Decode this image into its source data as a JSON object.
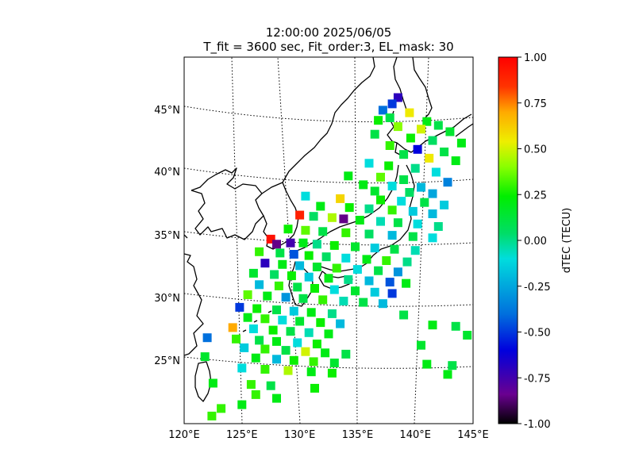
{
  "chart_data": {
    "type": "heatmap",
    "title_line1": "12:00:00 2025/06/05",
    "title_line2": "T_fit = 3600 sec, Fit_order:3, EL_mask: 30",
    "lon_ticks": [
      "120°E",
      "125°E",
      "130°E",
      "135°E",
      "140°E",
      "145°E"
    ],
    "lat_ticks": [
      "25°N",
      "30°N",
      "35°N",
      "40°N",
      "45°N"
    ],
    "lon_range": [
      120,
      145
    ],
    "lat_range": [
      20,
      49
    ],
    "colorbar": {
      "label": "dTEC (TECU)",
      "range": [
        -1.0,
        1.0
      ],
      "tick_labels": [
        "1.00",
        "0.75",
        "0.50",
        "0.25",
        "0.00",
        "-0.25",
        "-0.50",
        "-0.75",
        "-1.00"
      ],
      "tick_values": [
        1.0,
        0.75,
        0.5,
        0.25,
        0.0,
        -0.25,
        -0.5,
        -0.75,
        -1.0
      ],
      "colormap": "nipy_spectral-like"
    },
    "grid": true,
    "points": [
      {
        "lon": 138.5,
        "lat": 45.8,
        "v": -0.7
      },
      {
        "lon": 138.0,
        "lat": 45.3,
        "v": -0.5
      },
      {
        "lon": 137.2,
        "lat": 44.8,
        "v": -0.4
      },
      {
        "lon": 139.5,
        "lat": 44.6,
        "v": 0.55
      },
      {
        "lon": 137.8,
        "lat": 44.2,
        "v": 0.1
      },
      {
        "lon": 136.8,
        "lat": 44.0,
        "v": 0.25
      },
      {
        "lon": 141.0,
        "lat": 43.9,
        "v": 0.2
      },
      {
        "lon": 142.0,
        "lat": 43.6,
        "v": 0.1
      },
      {
        "lon": 138.5,
        "lat": 43.5,
        "v": 0.4
      },
      {
        "lon": 140.5,
        "lat": 43.3,
        "v": 0.5
      },
      {
        "lon": 143.0,
        "lat": 43.1,
        "v": 0.15
      },
      {
        "lon": 136.5,
        "lat": 42.9,
        "v": 0.1
      },
      {
        "lon": 139.6,
        "lat": 42.6,
        "v": 0.25
      },
      {
        "lon": 141.5,
        "lat": 42.4,
        "v": 0.05
      },
      {
        "lon": 144.0,
        "lat": 42.2,
        "v": 0.2
      },
      {
        "lon": 137.8,
        "lat": 42.0,
        "v": 0.3
      },
      {
        "lon": 140.2,
        "lat": 41.7,
        "v": -0.6
      },
      {
        "lon": 142.5,
        "lat": 41.5,
        "v": 0.1
      },
      {
        "lon": 139.0,
        "lat": 41.3,
        "v": 0.1
      },
      {
        "lon": 141.2,
        "lat": 41.0,
        "v": 0.55
      },
      {
        "lon": 143.5,
        "lat": 40.8,
        "v": 0.2
      },
      {
        "lon": 136.0,
        "lat": 40.6,
        "v": -0.1
      },
      {
        "lon": 137.7,
        "lat": 40.4,
        "v": 0.25
      },
      {
        "lon": 140.0,
        "lat": 40.2,
        "v": 0.0
      },
      {
        "lon": 141.8,
        "lat": 39.9,
        "v": -0.1
      },
      {
        "lon": 134.2,
        "lat": 39.6,
        "v": 0.2
      },
      {
        "lon": 137.0,
        "lat": 39.5,
        "v": 0.35
      },
      {
        "lon": 139.0,
        "lat": 39.3,
        "v": 0.1
      },
      {
        "lon": 142.8,
        "lat": 39.1,
        "v": -0.35
      },
      {
        "lon": 135.5,
        "lat": 38.9,
        "v": 0.2
      },
      {
        "lon": 138.0,
        "lat": 38.8,
        "v": -0.1
      },
      {
        "lon": 140.5,
        "lat": 38.7,
        "v": -0.2
      },
      {
        "lon": 136.5,
        "lat": 38.4,
        "v": 0.15
      },
      {
        "lon": 139.5,
        "lat": 38.3,
        "v": 0.05
      },
      {
        "lon": 141.5,
        "lat": 38.2,
        "v": -0.25
      },
      {
        "lon": 130.5,
        "lat": 38.0,
        "v": -0.1
      },
      {
        "lon": 133.5,
        "lat": 37.8,
        "v": 0.6
      },
      {
        "lon": 137.0,
        "lat": 37.7,
        "v": 0.25
      },
      {
        "lon": 138.8,
        "lat": 37.6,
        "v": -0.1
      },
      {
        "lon": 140.8,
        "lat": 37.5,
        "v": 0.1
      },
      {
        "lon": 142.5,
        "lat": 37.3,
        "v": -0.15
      },
      {
        "lon": 131.8,
        "lat": 37.2,
        "v": 0.2
      },
      {
        "lon": 134.3,
        "lat": 37.1,
        "v": 0.25
      },
      {
        "lon": 136.0,
        "lat": 37.0,
        "v": 0.0
      },
      {
        "lon": 138.0,
        "lat": 36.9,
        "v": 0.3
      },
      {
        "lon": 139.8,
        "lat": 36.8,
        "v": -0.15
      },
      {
        "lon": 141.5,
        "lat": 36.6,
        "v": -0.2
      },
      {
        "lon": 130.0,
        "lat": 36.5,
        "v": 0.9
      },
      {
        "lon": 131.2,
        "lat": 36.4,
        "v": 0.05
      },
      {
        "lon": 132.8,
        "lat": 36.3,
        "v": 0.45
      },
      {
        "lon": 133.8,
        "lat": 36.2,
        "v": -0.85
      },
      {
        "lon": 135.2,
        "lat": 36.1,
        "v": 0.2
      },
      {
        "lon": 137.0,
        "lat": 36.0,
        "v": -0.05
      },
      {
        "lon": 138.5,
        "lat": 35.9,
        "v": 0.1
      },
      {
        "lon": 140.2,
        "lat": 35.8,
        "v": -0.1
      },
      {
        "lon": 142.0,
        "lat": 35.6,
        "v": 0.0
      },
      {
        "lon": 129.0,
        "lat": 35.4,
        "v": 0.25
      },
      {
        "lon": 130.5,
        "lat": 35.3,
        "v": 0.35
      },
      {
        "lon": 132.0,
        "lat": 35.2,
        "v": 0.1
      },
      {
        "lon": 134.0,
        "lat": 35.1,
        "v": 0.3
      },
      {
        "lon": 136.0,
        "lat": 35.0,
        "v": 0.05
      },
      {
        "lon": 138.0,
        "lat": 34.9,
        "v": -0.2
      },
      {
        "lon": 139.8,
        "lat": 34.8,
        "v": 0.1
      },
      {
        "lon": 141.5,
        "lat": 34.7,
        "v": -0.1
      },
      {
        "lon": 127.5,
        "lat": 34.6,
        "v": 0.95
      },
      {
        "lon": 128.0,
        "lat": 34.2,
        "v": -0.85
      },
      {
        "lon": 129.2,
        "lat": 34.3,
        "v": -0.75
      },
      {
        "lon": 130.3,
        "lat": 34.3,
        "v": 0.2
      },
      {
        "lon": 131.5,
        "lat": 34.2,
        "v": 0.0
      },
      {
        "lon": 133.0,
        "lat": 34.1,
        "v": 0.25
      },
      {
        "lon": 134.8,
        "lat": 34.0,
        "v": 0.15
      },
      {
        "lon": 136.5,
        "lat": 33.9,
        "v": -0.15
      },
      {
        "lon": 138.2,
        "lat": 33.8,
        "v": 0.1
      },
      {
        "lon": 140.0,
        "lat": 33.7,
        "v": -0.05
      },
      {
        "lon": 126.5,
        "lat": 33.6,
        "v": 0.3
      },
      {
        "lon": 128.3,
        "lat": 33.5,
        "v": 0.1
      },
      {
        "lon": 129.5,
        "lat": 33.4,
        "v": -0.45
      },
      {
        "lon": 130.8,
        "lat": 33.3,
        "v": 0.25
      },
      {
        "lon": 132.3,
        "lat": 33.2,
        "v": 0.05
      },
      {
        "lon": 134.0,
        "lat": 33.1,
        "v": -0.1
      },
      {
        "lon": 135.8,
        "lat": 33.0,
        "v": 0.2
      },
      {
        "lon": 137.5,
        "lat": 32.9,
        "v": 0.3
      },
      {
        "lon": 139.3,
        "lat": 32.8,
        "v": 0.0
      },
      {
        "lon": 127.0,
        "lat": 32.7,
        "v": -0.7
      },
      {
        "lon": 128.5,
        "lat": 32.6,
        "v": 0.2
      },
      {
        "lon": 130.0,
        "lat": 32.5,
        "v": -0.2
      },
      {
        "lon": 131.5,
        "lat": 32.4,
        "v": 0.15
      },
      {
        "lon": 133.2,
        "lat": 32.3,
        "v": 0.3
      },
      {
        "lon": 135.0,
        "lat": 32.2,
        "v": -0.1
      },
      {
        "lon": 136.8,
        "lat": 32.1,
        "v": 0.1
      },
      {
        "lon": 138.5,
        "lat": 32.0,
        "v": -0.3
      },
      {
        "lon": 126.0,
        "lat": 31.9,
        "v": 0.15
      },
      {
        "lon": 127.8,
        "lat": 31.8,
        "v": 0.05
      },
      {
        "lon": 129.3,
        "lat": 31.7,
        "v": 0.25
      },
      {
        "lon": 130.8,
        "lat": 31.6,
        "v": -0.15
      },
      {
        "lon": 132.5,
        "lat": 31.5,
        "v": 0.2
      },
      {
        "lon": 134.2,
        "lat": 31.4,
        "v": 0.0
      },
      {
        "lon": 136.0,
        "lat": 31.3,
        "v": -0.2
      },
      {
        "lon": 137.8,
        "lat": 31.2,
        "v": -0.45
      },
      {
        "lon": 139.2,
        "lat": 31.1,
        "v": 0.2
      },
      {
        "lon": 126.5,
        "lat": 31.0,
        "v": -0.2
      },
      {
        "lon": 128.2,
        "lat": 30.9,
        "v": 0.3
      },
      {
        "lon": 129.8,
        "lat": 30.8,
        "v": 0.1
      },
      {
        "lon": 131.3,
        "lat": 30.7,
        "v": 0.25
      },
      {
        "lon": 133.0,
        "lat": 30.6,
        "v": -0.1
      },
      {
        "lon": 134.8,
        "lat": 30.5,
        "v": 0.15
      },
      {
        "lon": 136.5,
        "lat": 30.4,
        "v": -0.15
      },
      {
        "lon": 138.0,
        "lat": 30.3,
        "v": -0.5
      },
      {
        "lon": 125.5,
        "lat": 30.2,
        "v": 0.35
      },
      {
        "lon": 127.2,
        "lat": 30.1,
        "v": 0.2
      },
      {
        "lon": 128.8,
        "lat": 30.0,
        "v": -0.3
      },
      {
        "lon": 130.3,
        "lat": 29.9,
        "v": 0.1
      },
      {
        "lon": 132.0,
        "lat": 29.8,
        "v": 0.3
      },
      {
        "lon": 133.8,
        "lat": 29.7,
        "v": -0.05
      },
      {
        "lon": 135.5,
        "lat": 29.6,
        "v": 0.1
      },
      {
        "lon": 137.2,
        "lat": 29.5,
        "v": -0.2
      },
      {
        "lon": 124.8,
        "lat": 29.2,
        "v": -0.5
      },
      {
        "lon": 126.3,
        "lat": 29.1,
        "v": 0.25
      },
      {
        "lon": 128.0,
        "lat": 29.0,
        "v": 0.1
      },
      {
        "lon": 129.5,
        "lat": 28.9,
        "v": -0.15
      },
      {
        "lon": 131.0,
        "lat": 28.8,
        "v": 0.2
      },
      {
        "lon": 132.8,
        "lat": 28.7,
        "v": 0.0
      },
      {
        "lon": 139.0,
        "lat": 28.6,
        "v": 0.1
      },
      {
        "lon": 125.5,
        "lat": 28.4,
        "v": 0.2
      },
      {
        "lon": 127.0,
        "lat": 28.3,
        "v": 0.3
      },
      {
        "lon": 128.5,
        "lat": 28.2,
        "v": -0.1
      },
      {
        "lon": 130.0,
        "lat": 28.1,
        "v": 0.15
      },
      {
        "lon": 131.8,
        "lat": 28.0,
        "v": 0.25
      },
      {
        "lon": 133.5,
        "lat": 27.9,
        "v": -0.2
      },
      {
        "lon": 141.5,
        "lat": 27.8,
        "v": 0.2
      },
      {
        "lon": 143.5,
        "lat": 27.7,
        "v": 0.1
      },
      {
        "lon": 124.2,
        "lat": 27.6,
        "v": 0.7
      },
      {
        "lon": 126.0,
        "lat": 27.5,
        "v": -0.1
      },
      {
        "lon": 127.7,
        "lat": 27.4,
        "v": 0.25
      },
      {
        "lon": 129.2,
        "lat": 27.3,
        "v": 0.1
      },
      {
        "lon": 130.8,
        "lat": 27.2,
        "v": -0.05
      },
      {
        "lon": 132.5,
        "lat": 27.1,
        "v": 0.2
      },
      {
        "lon": 144.5,
        "lat": 27.0,
        "v": 0.15
      },
      {
        "lon": 122.0,
        "lat": 26.8,
        "v": -0.4
      },
      {
        "lon": 124.5,
        "lat": 26.7,
        "v": 0.3
      },
      {
        "lon": 126.5,
        "lat": 26.6,
        "v": 0.1
      },
      {
        "lon": 128.0,
        "lat": 26.5,
        "v": 0.2
      },
      {
        "lon": 129.8,
        "lat": 26.4,
        "v": -0.1
      },
      {
        "lon": 131.5,
        "lat": 26.3,
        "v": 0.25
      },
      {
        "lon": 140.5,
        "lat": 26.2,
        "v": 0.15
      },
      {
        "lon": 125.2,
        "lat": 26.0,
        "v": -0.15
      },
      {
        "lon": 127.0,
        "lat": 25.9,
        "v": 0.3
      },
      {
        "lon": 128.8,
        "lat": 25.8,
        "v": 0.1
      },
      {
        "lon": 130.5,
        "lat": 25.7,
        "v": 0.5
      },
      {
        "lon": 132.2,
        "lat": 25.6,
        "v": 0.2
      },
      {
        "lon": 134.0,
        "lat": 25.5,
        "v": 0.1
      },
      {
        "lon": 121.8,
        "lat": 25.3,
        "v": 0.15
      },
      {
        "lon": 126.2,
        "lat": 25.2,
        "v": 0.2
      },
      {
        "lon": 128.0,
        "lat": 25.1,
        "v": -0.2
      },
      {
        "lon": 129.5,
        "lat": 25.0,
        "v": 0.25
      },
      {
        "lon": 131.2,
        "lat": 24.9,
        "v": 0.3
      },
      {
        "lon": 133.0,
        "lat": 24.8,
        "v": 0.15
      },
      {
        "lon": 141.0,
        "lat": 24.7,
        "v": 0.2
      },
      {
        "lon": 143.2,
        "lat": 24.6,
        "v": 0.1
      },
      {
        "lon": 125.0,
        "lat": 24.4,
        "v": -0.1
      },
      {
        "lon": 127.0,
        "lat": 24.3,
        "v": 0.3
      },
      {
        "lon": 129.0,
        "lat": 24.2,
        "v": 0.45
      },
      {
        "lon": 131.0,
        "lat": 24.1,
        "v": 0.2
      },
      {
        "lon": 132.8,
        "lat": 24.0,
        "v": 0.25
      },
      {
        "lon": 142.8,
        "lat": 23.9,
        "v": 0.2
      },
      {
        "lon": 122.5,
        "lat": 23.2,
        "v": 0.2
      },
      {
        "lon": 125.8,
        "lat": 23.1,
        "v": 0.3
      },
      {
        "lon": 127.5,
        "lat": 23.0,
        "v": 0.1
      },
      {
        "lon": 131.3,
        "lat": 22.8,
        "v": 0.25
      },
      {
        "lon": 126.2,
        "lat": 22.3,
        "v": 0.3
      },
      {
        "lon": 128.0,
        "lat": 22.0,
        "v": 0.2
      },
      {
        "lon": 123.2,
        "lat": 21.2,
        "v": 0.3
      },
      {
        "lon": 125.0,
        "lat": 21.5,
        "v": 0.2
      },
      {
        "lon": 122.4,
        "lat": 20.6,
        "v": 0.3
      }
    ]
  }
}
